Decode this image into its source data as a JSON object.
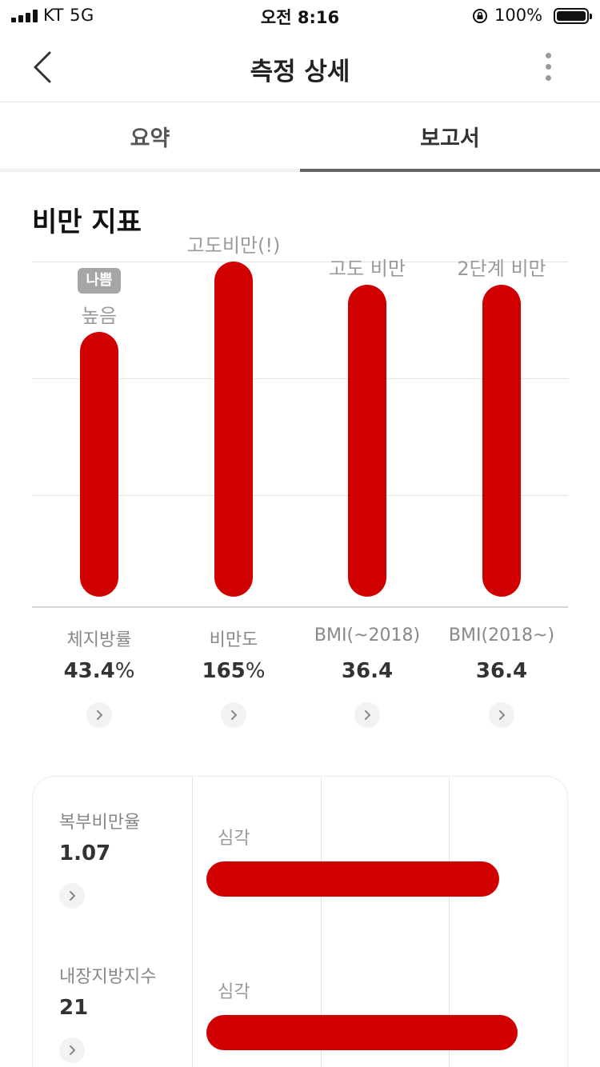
{
  "status_bar": {
    "carrier": "KT   5G",
    "time": "오전 8:16",
    "battery": "100%"
  },
  "header": {
    "title": "측정 상세",
    "back_icon": "chevron-left-icon",
    "more_icon": "more-vertical-icon"
  },
  "tabs": [
    {
      "label": "요약",
      "active": false
    },
    {
      "label": "보고서",
      "active": true
    }
  ],
  "section_title": "비만 지표",
  "colors": {
    "bar": "#d10000",
    "badge": "#a6a6a6",
    "grid": "#e3e3e3"
  },
  "chart_data": {
    "type": "bar",
    "title": "비만 지표",
    "categories": [
      "체지방률",
      "비만도",
      "BMI(~2018)",
      "BMI(2018~)"
    ],
    "value_labels": [
      "43.4%",
      "165%",
      "36.4",
      "36.4"
    ],
    "level_labels": [
      "높음",
      "고도비만(!)",
      "고도 비만",
      "2단계 비만"
    ],
    "badge": {
      "index": 0,
      "text": "나쁨"
    },
    "levels": [
      0.79,
      1.0,
      0.93,
      0.93
    ],
    "ylim": [
      0,
      1
    ],
    "grid": true
  },
  "metrics": [
    {
      "name": "복부비만율",
      "value": "1.07",
      "level": "심각",
      "fill": 0.81
    },
    {
      "name": "내장지방지수",
      "value": "21",
      "level": "심각",
      "fill": 0.86
    }
  ]
}
